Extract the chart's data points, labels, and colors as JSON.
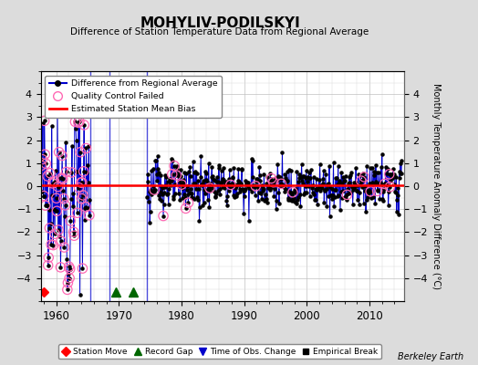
{
  "title": "MOHYLIV-PODILSKYI",
  "subtitle": "Difference of Station Temperature Data from Regional Average",
  "ylabel": "Monthly Temperature Anomaly Difference (°C)",
  "xlabel_years": [
    1960,
    1970,
    1980,
    1990,
    2000,
    2010
  ],
  "xlim": [
    1957.5,
    2015.5
  ],
  "ylim": [
    -5,
    5
  ],
  "yticks": [
    -4,
    -3,
    -2,
    -1,
    0,
    1,
    2,
    3,
    4
  ],
  "mean_bias": 0.05,
  "bg_color": "#dcdcdc",
  "plot_bg_color": "#ffffff",
  "line_color": "#0000cc",
  "bias_color": "#ff0000",
  "qc_color": "#ff69b4",
  "seed": 42,
  "station_move_year": 1958.0,
  "record_gaps": [
    1969.5,
    1972.3
  ],
  "watermark": "Berkeley Earth"
}
